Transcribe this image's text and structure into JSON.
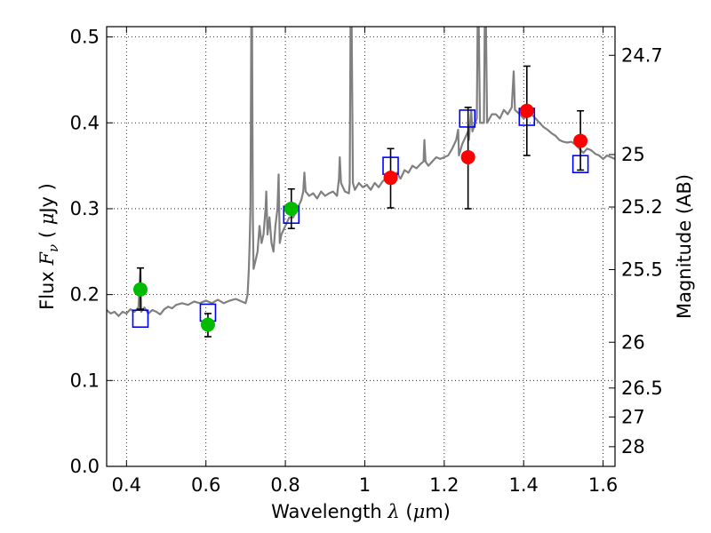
{
  "chart_data": {
    "type": "scatter",
    "xlabel": {
      "prefix": "Wavelength  ",
      "symbol": "λ",
      "mid": " (",
      "mu": "μ",
      "unit": "m)"
    },
    "ylabel": {
      "prefix": "Flux  ",
      "symbol": "F",
      "sub": "ν",
      "mid": "  ( ",
      "mu": "μ",
      "unit": "Jy )"
    },
    "y2label": "Magnitude (AB)",
    "xlim": [
      0.35,
      1.63
    ],
    "ylim": [
      0.0,
      0.512
    ],
    "grid": true,
    "x_ticks": [
      {
        "v": 0.4,
        "label": "0.4"
      },
      {
        "v": 0.6,
        "label": "0.6"
      },
      {
        "v": 0.8,
        "label": "0.8"
      },
      {
        "v": 1.0,
        "label": "1"
      },
      {
        "v": 1.2,
        "label": "1.2"
      },
      {
        "v": 1.4,
        "label": "1.4"
      },
      {
        "v": 1.6,
        "label": "1.6"
      }
    ],
    "y_ticks": [
      {
        "v": 0.0,
        "label": "0.0"
      },
      {
        "v": 0.1,
        "label": "0.1"
      },
      {
        "v": 0.2,
        "label": "0.2"
      },
      {
        "v": 0.3,
        "label": "0.3"
      },
      {
        "v": 0.4,
        "label": "0.4"
      },
      {
        "v": 0.5,
        "label": "0.5"
      }
    ],
    "mag_ticks": [
      {
        "mag": 24.7,
        "label": "24.7"
      },
      {
        "mag": 25.0,
        "label": "25"
      },
      {
        "mag": 25.2,
        "label": "25.2"
      },
      {
        "mag": 25.5,
        "label": "25.5"
      },
      {
        "mag": 26.0,
        "label": "26"
      },
      {
        "mag": 26.5,
        "label": "26.5"
      },
      {
        "mag": 27.0,
        "label": "27"
      },
      {
        "mag": 28.0,
        "label": "28"
      }
    ],
    "series": [
      {
        "kind": "spectrum",
        "color": "#808080",
        "points": [
          [
            0.35,
            0.182
          ],
          [
            0.36,
            0.178
          ],
          [
            0.37,
            0.18
          ],
          [
            0.38,
            0.175
          ],
          [
            0.39,
            0.18
          ],
          [
            0.4,
            0.178
          ],
          [
            0.41,
            0.183
          ],
          [
            0.42,
            0.18
          ],
          [
            0.43,
            0.185
          ],
          [
            0.435,
            0.23
          ],
          [
            0.437,
            0.18
          ],
          [
            0.445,
            0.185
          ],
          [
            0.455,
            0.178
          ],
          [
            0.465,
            0.182
          ],
          [
            0.475,
            0.18
          ],
          [
            0.485,
            0.177
          ],
          [
            0.495,
            0.183
          ],
          [
            0.505,
            0.186
          ],
          [
            0.515,
            0.184
          ],
          [
            0.525,
            0.188
          ],
          [
            0.54,
            0.19
          ],
          [
            0.555,
            0.188
          ],
          [
            0.57,
            0.192
          ],
          [
            0.585,
            0.19
          ],
          [
            0.6,
            0.193
          ],
          [
            0.615,
            0.19
          ],
          [
            0.63,
            0.194
          ],
          [
            0.645,
            0.19
          ],
          [
            0.66,
            0.193
          ],
          [
            0.675,
            0.195
          ],
          [
            0.69,
            0.192
          ],
          [
            0.7,
            0.19
          ],
          [
            0.705,
            0.2
          ],
          [
            0.708,
            0.23
          ],
          [
            0.71,
            0.26
          ],
          [
            0.712,
            0.3
          ],
          [
            0.714,
            0.512
          ],
          [
            0.716,
            0.512
          ],
          [
            0.718,
            0.29
          ],
          [
            0.72,
            0.23
          ],
          [
            0.725,
            0.24
          ],
          [
            0.73,
            0.25
          ],
          [
            0.735,
            0.28
          ],
          [
            0.74,
            0.26
          ],
          [
            0.745,
            0.27
          ],
          [
            0.75,
            0.3
          ],
          [
            0.752,
            0.32
          ],
          [
            0.755,
            0.27
          ],
          [
            0.76,
            0.29
          ],
          [
            0.765,
            0.26
          ],
          [
            0.77,
            0.25
          ],
          [
            0.775,
            0.28
          ],
          [
            0.78,
            0.3
          ],
          [
            0.783,
            0.34
          ],
          [
            0.786,
            0.26
          ],
          [
            0.79,
            0.27
          ],
          [
            0.8,
            0.28
          ],
          [
            0.81,
            0.29
          ],
          [
            0.82,
            0.29
          ],
          [
            0.83,
            0.3
          ],
          [
            0.84,
            0.31
          ],
          [
            0.845,
            0.32
          ],
          [
            0.848,
            0.342
          ],
          [
            0.851,
            0.32
          ],
          [
            0.86,
            0.315
          ],
          [
            0.87,
            0.318
          ],
          [
            0.88,
            0.312
          ],
          [
            0.89,
            0.32
          ],
          [
            0.9,
            0.315
          ],
          [
            0.91,
            0.318
          ],
          [
            0.92,
            0.32
          ],
          [
            0.93,
            0.315
          ],
          [
            0.935,
            0.335
          ],
          [
            0.937,
            0.36
          ],
          [
            0.94,
            0.33
          ],
          [
            0.95,
            0.32
          ],
          [
            0.96,
            0.318
          ],
          [
            0.962,
            0.33
          ],
          [
            0.964,
            0.512
          ],
          [
            0.967,
            0.512
          ],
          [
            0.97,
            0.33
          ],
          [
            0.975,
            0.322
          ],
          [
            0.985,
            0.33
          ],
          [
            0.995,
            0.325
          ],
          [
            1.005,
            0.328
          ],
          [
            1.015,
            0.322
          ],
          [
            1.025,
            0.33
          ],
          [
            1.035,
            0.325
          ],
          [
            1.045,
            0.332
          ],
          [
            1.055,
            0.335
          ],
          [
            1.06,
            0.332
          ],
          [
            1.065,
            0.34
          ],
          [
            1.07,
            0.338
          ],
          [
            1.08,
            0.342
          ],
          [
            1.09,
            0.335
          ],
          [
            1.1,
            0.345
          ],
          [
            1.11,
            0.342
          ],
          [
            1.12,
            0.35
          ],
          [
            1.13,
            0.347
          ],
          [
            1.14,
            0.352
          ],
          [
            1.148,
            0.355
          ],
          [
            1.15,
            0.38
          ],
          [
            1.153,
            0.355
          ],
          [
            1.16,
            0.35
          ],
          [
            1.17,
            0.355
          ],
          [
            1.18,
            0.36
          ],
          [
            1.19,
            0.358
          ],
          [
            1.2,
            0.36
          ],
          [
            1.21,
            0.362
          ],
          [
            1.22,
            0.37
          ],
          [
            1.23,
            0.38
          ],
          [
            1.235,
            0.392
          ],
          [
            1.237,
            0.362
          ],
          [
            1.245,
            0.375
          ],
          [
            1.255,
            0.385
          ],
          [
            1.26,
            0.39
          ],
          [
            1.262,
            0.38
          ],
          [
            1.265,
            0.4
          ],
          [
            1.268,
            0.415
          ],
          [
            1.271,
            0.39
          ],
          [
            1.278,
            0.4
          ],
          [
            1.282,
            0.405
          ],
          [
            1.284,
            0.512
          ],
          [
            1.287,
            0.512
          ],
          [
            1.29,
            0.4
          ],
          [
            1.3,
            0.4
          ],
          [
            1.302,
            0.512
          ],
          [
            1.305,
            0.512
          ],
          [
            1.308,
            0.4
          ],
          [
            1.32,
            0.41
          ],
          [
            1.33,
            0.41
          ],
          [
            1.34,
            0.405
          ],
          [
            1.35,
            0.415
          ],
          [
            1.36,
            0.41
          ],
          [
            1.37,
            0.418
          ],
          [
            1.375,
            0.46
          ],
          [
            1.378,
            0.415
          ],
          [
            1.39,
            0.41
          ],
          [
            1.4,
            0.405
          ],
          [
            1.41,
            0.408
          ],
          [
            1.42,
            0.41
          ],
          [
            1.43,
            0.405
          ],
          [
            1.44,
            0.4
          ],
          [
            1.45,
            0.395
          ],
          [
            1.46,
            0.392
          ],
          [
            1.47,
            0.388
          ],
          [
            1.48,
            0.385
          ],
          [
            1.49,
            0.38
          ],
          [
            1.5,
            0.378
          ],
          [
            1.51,
            0.377
          ],
          [
            1.52,
            0.378
          ],
          [
            1.53,
            0.375
          ],
          [
            1.54,
            0.37
          ],
          [
            1.55,
            0.365
          ],
          [
            1.56,
            0.37
          ],
          [
            1.57,
            0.368
          ],
          [
            1.58,
            0.364
          ],
          [
            1.59,
            0.362
          ],
          [
            1.6,
            0.358
          ],
          [
            1.61,
            0.362
          ],
          [
            1.62,
            0.36
          ],
          [
            1.63,
            0.358
          ]
        ]
      },
      {
        "kind": "model-squares",
        "color": "#0000ff",
        "points": [
          [
            0.435,
            0.172
          ],
          [
            0.605,
            0.179
          ],
          [
            0.815,
            0.293
          ],
          [
            1.065,
            0.35
          ],
          [
            1.258,
            0.405
          ],
          [
            1.408,
            0.407
          ],
          [
            1.543,
            0.352
          ]
        ]
      },
      {
        "kind": "observed-green",
        "color": "#00bb00",
        "points": [
          {
            "x": 0.435,
            "y": 0.206,
            "lo": 0.183,
            "hi": 0.231
          },
          {
            "x": 0.605,
            "y": 0.165,
            "lo": 0.151,
            "hi": 0.178
          },
          {
            "x": 0.815,
            "y": 0.3,
            "lo": 0.277,
            "hi": 0.323
          }
        ]
      },
      {
        "kind": "observed-red",
        "color": "#ff0000",
        "points": [
          {
            "x": 1.065,
            "y": 0.336,
            "lo": 0.301,
            "hi": 0.37
          },
          {
            "x": 1.26,
            "y": 0.36,
            "lo": 0.3,
            "hi": 0.418
          },
          {
            "x": 1.408,
            "y": 0.414,
            "lo": 0.362,
            "hi": 0.466
          },
          {
            "x": 1.543,
            "y": 0.379,
            "lo": 0.345,
            "hi": 0.414
          }
        ]
      }
    ]
  }
}
